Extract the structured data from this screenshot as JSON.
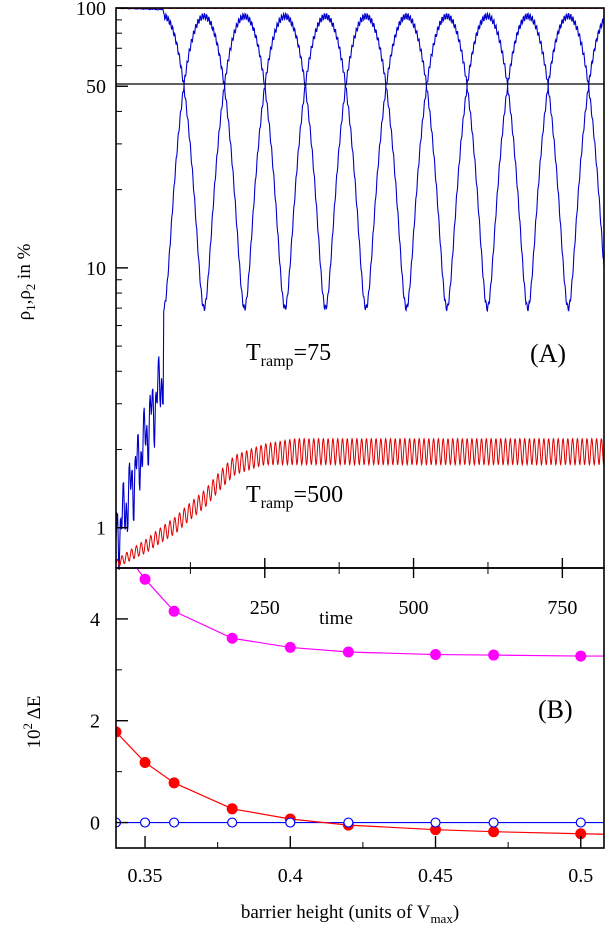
{
  "chart_data": [
    {
      "type": "line",
      "panel_label": "(A)",
      "ylabel": "ρ1,ρ2 in %",
      "ylabel_parts": {
        "base": "ρ",
        "sub1": "1",
        "sep": ",",
        "base2": "ρ",
        "sub2": "2",
        "suffix": " in %"
      },
      "yscale": "log",
      "ylim": [
        0.7,
        100
      ],
      "yticks": [
        1,
        10,
        50,
        100
      ],
      "ytick_labels": [
        "1",
        "10",
        "50",
        "100"
      ],
      "xlabel": "time",
      "xlim": [
        0,
        820
      ],
      "xticks": [
        250,
        500,
        750
      ],
      "xtick_labels": [
        "250",
        "500",
        "750"
      ],
      "reference_line": 50,
      "annotations": [
        {
          "base": "T",
          "sub": "ramp",
          "rest": "=75"
        },
        {
          "base": "T",
          "sub": "ramp",
          "rest": "=500"
        }
      ],
      "series": [
        {
          "name": "T_ramp=75",
          "color": "#0000cc",
          "description": "oscillating populations between ~8% and ~92%",
          "x": [
            0,
            20,
            40,
            60,
            80,
            100,
            120,
            140,
            160,
            180,
            200,
            220,
            240,
            260,
            280,
            300,
            320,
            340,
            360,
            380,
            400,
            420,
            440,
            460,
            480,
            500,
            520,
            540,
            560,
            580,
            600,
            620,
            640,
            660,
            680,
            700,
            720,
            740,
            760,
            780,
            800,
            820
          ],
          "y_lower": [
            0.9,
            1.2,
            2.0,
            3.8,
            25,
            50,
            5.5,
            30,
            7.5,
            40,
            8,
            40,
            7.5,
            42,
            7.5,
            42,
            8,
            42,
            7.5,
            42,
            8,
            40,
            8,
            40,
            9,
            40,
            10,
            40,
            10,
            40,
            11,
            40,
            12,
            40,
            12,
            40,
            12,
            40,
            12,
            40,
            12,
            50
          ],
          "y_upper": [
            99.5,
            99,
            98,
            97,
            93,
            50,
            92,
            60,
            92,
            55,
            92,
            55,
            92,
            55,
            92,
            55,
            92,
            55,
            92,
            55,
            92,
            55,
            92,
            55,
            92,
            55,
            92,
            55,
            92,
            55,
            92,
            55,
            92,
            55,
            92,
            55,
            92,
            55,
            92,
            55,
            92,
            55
          ]
        },
        {
          "name": "T_ramp=500",
          "color": "#dd0000",
          "description": "slowly rising small population with fast oscillation, saturating near 2%",
          "x": [
            0,
            50,
            100,
            150,
            200,
            250,
            300,
            400,
            500,
            600,
            700,
            820
          ],
          "y_min": [
            0.7,
            0.8,
            0.95,
            1.2,
            1.6,
            1.75,
            1.75,
            1.75,
            1.75,
            1.75,
            1.75,
            1.75
          ],
          "y_max": [
            0.75,
            0.9,
            1.1,
            1.4,
            1.9,
            2.1,
            2.2,
            2.2,
            2.2,
            2.2,
            2.2,
            2.2
          ],
          "upper_trace": 99.8
        }
      ]
    },
    {
      "type": "line",
      "panel_label": "(B)",
      "ylabel": "10² ΔE",
      "ylabel_parts": {
        "base": "10",
        "sup": "2",
        "rest": " ΔE"
      },
      "ylim": [
        -0.5,
        5.0
      ],
      "yticks": [
        0,
        2,
        4
      ],
      "ytick_labels": [
        "0",
        "2",
        "4"
      ],
      "xlabel": "barrier height (units of Vmax)",
      "xlabel_parts": {
        "base": "barrier height (units of V",
        "sub": "max",
        "rest": ")"
      },
      "xlim": [
        0.34,
        0.508
      ],
      "xticks": [
        0.35,
        0.4,
        0.45,
        0.5
      ],
      "xtick_labels": [
        "0.35",
        "0.4",
        "0.45",
        "0.5"
      ],
      "series": [
        {
          "name": "magenta",
          "color": "#ff00ff",
          "marker": "filled-circle",
          "x": [
            0.35,
            0.36,
            0.38,
            0.4,
            0.42,
            0.45,
            0.47,
            0.5
          ],
          "y": [
            4.78,
            4.15,
            3.62,
            3.44,
            3.35,
            3.3,
            3.29,
            3.27
          ]
        },
        {
          "name": "red",
          "color": "#ff0000",
          "marker": "filled-circle",
          "x": [
            0.34,
            0.35,
            0.36,
            0.38,
            0.4,
            0.42,
            0.45,
            0.47,
            0.5
          ],
          "y": [
            1.78,
            1.18,
            0.78,
            0.27,
            0.07,
            -0.05,
            -0.14,
            -0.18,
            -0.22
          ]
        },
        {
          "name": "blue",
          "color": "#0000ff",
          "marker": "open-circle",
          "x": [
            0.34,
            0.35,
            0.36,
            0.38,
            0.4,
            0.42,
            0.45,
            0.47,
            0.5
          ],
          "y": [
            0,
            0,
            0,
            0,
            0,
            0,
            0,
            0,
            0
          ]
        }
      ]
    }
  ]
}
